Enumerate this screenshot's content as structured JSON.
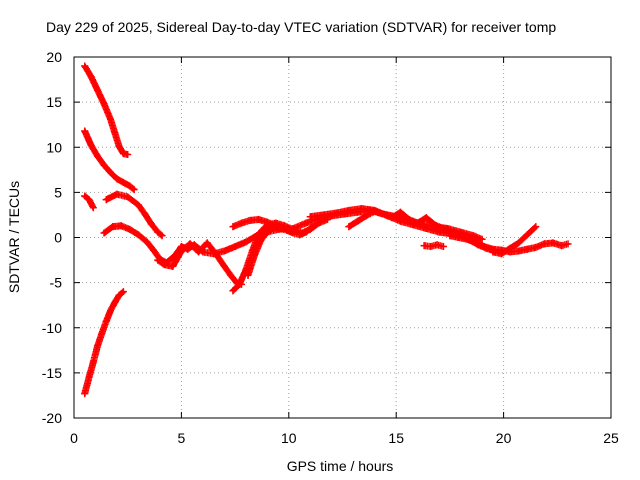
{
  "chart_data": {
    "type": "scatter",
    "title": "Day 229 of 2025, Sidereal Day-to-day VTEC variation (SDTVAR) for receiver tomp",
    "xlabel": "GPS time / hours",
    "ylabel": "SDTVAR / TECUs",
    "xlim": [
      0,
      25
    ],
    "ylim": [
      -20,
      20
    ],
    "xticks": [
      0,
      5,
      10,
      15,
      20,
      25
    ],
    "yticks": [
      -20,
      -15,
      -10,
      -5,
      0,
      5,
      10,
      15,
      20
    ],
    "grid": true,
    "legend": "none",
    "marker": "plus",
    "color": "#ff0000",
    "series": [
      {
        "name": "track-1",
        "x": [
          0.5,
          0.8,
          1.1,
          1.4,
          1.7,
          1.9,
          2.1,
          2.3,
          2.5
        ],
        "y": [
          19,
          17.8,
          16.3,
          14.8,
          13.1,
          11.6,
          10.1,
          9.3,
          9.2
        ]
      },
      {
        "name": "track-2",
        "x": [
          0.5,
          0.8,
          1.1,
          1.4,
          1.7,
          2.0,
          2.3,
          2.6,
          2.8
        ],
        "y": [
          11.8,
          10.2,
          9.0,
          8.0,
          7.2,
          6.5,
          6.1,
          5.7,
          5.3
        ]
      },
      {
        "name": "track-3",
        "x": [
          0.5,
          0.7,
          0.9
        ],
        "y": [
          4.6,
          4.2,
          3.3
        ]
      },
      {
        "name": "track-4",
        "x": [
          1.5,
          2.0,
          2.5,
          3.0,
          3.3,
          3.6,
          3.9,
          4.1
        ],
        "y": [
          4.2,
          4.8,
          4.5,
          3.6,
          2.6,
          1.5,
          0.6,
          0.2
        ]
      },
      {
        "name": "track-5",
        "x": [
          1.4,
          1.8,
          2.2,
          2.6,
          3.0,
          3.4,
          3.7,
          4.0,
          4.3,
          4.7,
          5.0,
          5.3,
          5.6,
          6.0,
          6.5,
          7.0,
          7.5,
          8.0,
          8.5,
          9.0,
          9.5,
          10.0
        ],
        "y": [
          0.5,
          1.2,
          1.3,
          0.9,
          0.3,
          -0.5,
          -1.4,
          -2.4,
          -2.8,
          -2.0,
          -1.0,
          -1.3,
          -0.8,
          -1.6,
          -1.8,
          -1.5,
          -1.0,
          -0.5,
          0.2,
          0.6,
          0.9,
          1.0
        ]
      },
      {
        "name": "track-6",
        "x": [
          0.5,
          0.7,
          0.9,
          1.1,
          1.3,
          1.5,
          1.7,
          1.9,
          2.1,
          2.3
        ],
        "y": [
          -17.3,
          -15.5,
          -13.8,
          -12.0,
          -10.6,
          -9.3,
          -8.1,
          -7.2,
          -6.4,
          -6.0
        ]
      },
      {
        "name": "track-7",
        "x": [
          3.9,
          4.2,
          4.6,
          5.0,
          5.4,
          5.8,
          6.2,
          6.6,
          7.0,
          7.3,
          7.6,
          7.8
        ],
        "y": [
          -2.5,
          -3.0,
          -3.2,
          -1.5,
          -0.7,
          -1.6,
          -0.6,
          -1.8,
          -3.2,
          -4.2,
          -5.1,
          -5.2
        ]
      },
      {
        "name": "track-8",
        "x": [
          7.4,
          7.7,
          8.0,
          8.3,
          8.6,
          9.0,
          9.4,
          9.8,
          10.2,
          10.6,
          11.0,
          11.4,
          11.8
        ],
        "y": [
          -5.9,
          -5.2,
          -3.6,
          -1.5,
          0.4,
          1.4,
          1.6,
          1.3,
          0.9,
          0.5,
          0.9,
          1.6,
          2.0
        ]
      },
      {
        "name": "track-9",
        "x": [
          8.1,
          8.4,
          8.7,
          9.0,
          9.3,
          9.6,
          9.9,
          10.2,
          10.5,
          10.8,
          11.1
        ],
        "y": [
          -4.2,
          -2.0,
          -0.3,
          0.6,
          1.1,
          1.0,
          0.8,
          0.5,
          0.3,
          0.6,
          1.2
        ]
      },
      {
        "name": "track-10",
        "x": [
          7.4,
          7.8,
          8.2,
          8.6,
          9.0,
          9.4,
          9.8,
          10.2
        ],
        "y": [
          1.2,
          1.6,
          1.9,
          2.0,
          1.7,
          1.3,
          1.0,
          0.8
        ]
      },
      {
        "name": "track-11",
        "x": [
          10.2,
          10.8,
          11.4,
          12.0,
          12.6,
          13.2,
          13.8,
          14.4,
          15.0,
          15.6,
          16.2,
          16.8,
          17.4,
          18.0,
          18.6,
          19.0
        ],
        "y": [
          1.0,
          1.6,
          2.1,
          2.4,
          2.6,
          2.8,
          3.0,
          2.6,
          2.3,
          1.9,
          1.5,
          1.2,
          1.0,
          0.6,
          0.2,
          -0.2
        ]
      },
      {
        "name": "track-12",
        "x": [
          11.0,
          11.6,
          12.2,
          12.8,
          13.4,
          14.0,
          14.6,
          15.2,
          15.8,
          16.4,
          17.0,
          17.6,
          18.2,
          18.8
        ],
        "y": [
          2.3,
          2.5,
          2.7,
          3.0,
          3.2,
          3.0,
          2.4,
          1.8,
          1.4,
          1.0,
          0.6,
          0.4,
          0.1,
          -0.3
        ]
      },
      {
        "name": "track-13",
        "x": [
          12.8,
          13.2,
          13.6,
          14.0,
          14.4,
          14.8,
          15.2,
          15.6,
          16.0,
          16.4,
          16.8,
          17.2,
          17.6,
          18.0,
          18.4,
          18.8,
          19.2,
          19.6
        ],
        "y": [
          1.2,
          1.8,
          2.4,
          2.9,
          2.6,
          2.2,
          2.8,
          2.0,
          1.6,
          2.2,
          1.4,
          1.0,
          0.5,
          0.2,
          -0.2,
          -0.8,
          -1.2,
          -1.5
        ]
      },
      {
        "name": "track-14",
        "x": [
          16.3,
          16.6,
          16.9,
          17.2
        ],
        "y": [
          -0.9,
          -1.0,
          -0.8,
          -1.0
        ]
      },
      {
        "name": "track-15",
        "x": [
          17.5,
          17.9,
          18.3,
          18.7,
          19.1,
          19.5,
          19.9,
          20.3,
          20.7,
          21.1,
          21.5,
          21.9,
          22.3,
          22.7,
          23.0
        ],
        "y": [
          0.2,
          0.0,
          -0.2,
          -0.6,
          -1.0,
          -1.3,
          -1.4,
          -1.6,
          -1.5,
          -1.3,
          -1.1,
          -0.7,
          -0.6,
          -0.9,
          -0.7
        ]
      },
      {
        "name": "track-16",
        "x": [
          19.5,
          19.9,
          20.3,
          20.7,
          21.1,
          21.5
        ],
        "y": [
          -1.6,
          -1.8,
          -1.2,
          -0.6,
          0.3,
          1.2
        ]
      }
    ]
  }
}
